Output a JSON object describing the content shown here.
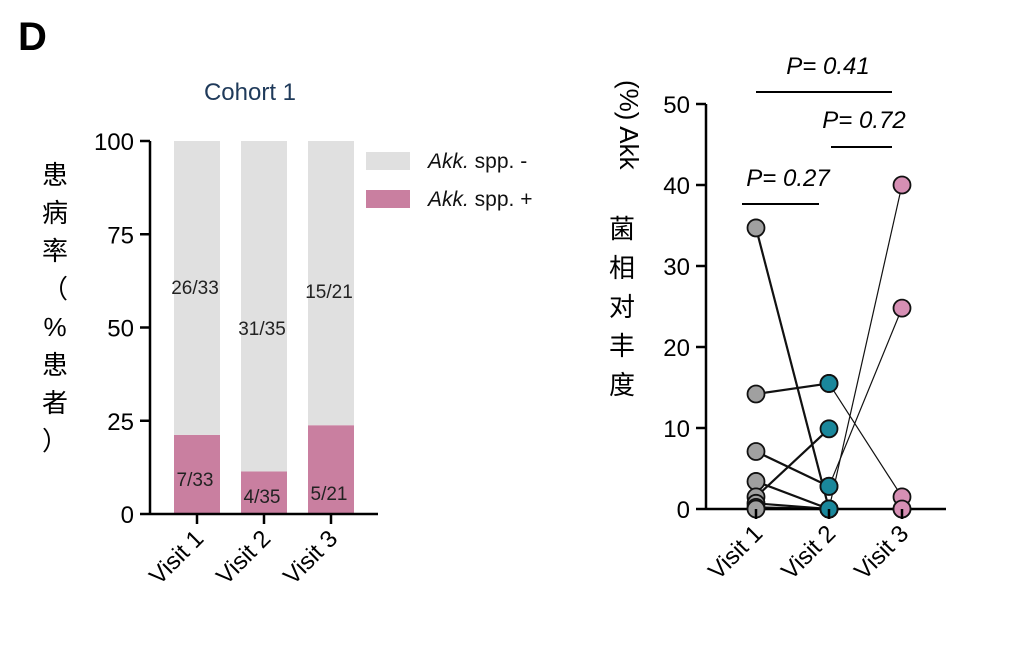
{
  "panel_label": "D",
  "chart_data": [
    {
      "type": "bar",
      "stacked": true,
      "title": "Cohort 1",
      "categories": [
        "Visit 1",
        "Visit 2",
        "Visit 3"
      ],
      "ylabel_chars": [
        "患",
        "病",
        "率",
        "（",
        "%",
        "患",
        "者",
        "）"
      ],
      "ylim": [
        0,
        100
      ],
      "yticks": [
        "0",
        "25",
        "50",
        "75",
        "100"
      ],
      "series": [
        {
          "name": "Akk. spp. +",
          "values": [
            21.2,
            11.4,
            23.8
          ],
          "labels": [
            "7/33",
            "4/35",
            "5/21"
          ],
          "color": "#c97fa0"
        },
        {
          "name": "Akk. spp. -",
          "values": [
            78.8,
            88.6,
            76.2
          ],
          "labels": [
            "26/33",
            "31/35",
            "15/21"
          ],
          "color": "#e0e0e0"
        }
      ],
      "legend": {
        "placement": "right",
        "entries": [
          {
            "italic": "Akk.",
            "rest": " spp. -",
            "color": "#e0e0e0"
          },
          {
            "italic": "Akk.",
            "rest": " spp. +",
            "color": "#c97fa0"
          }
        ]
      }
    },
    {
      "type": "scatter",
      "paired": true,
      "categories": [
        "Visit 1",
        "Visit 2",
        "Visit 3"
      ],
      "ylabel_head": "(%) Akk",
      "ylabel_chars": [
        "菌",
        "相",
        "对",
        "丰",
        "度"
      ],
      "ylim": [
        0,
        50
      ],
      "yticks": [
        "0",
        "10",
        "20",
        "30",
        "40",
        "50"
      ],
      "point_colors": [
        "#a0a0a0",
        "#1a879b",
        "#d68fb4"
      ],
      "subjects": [
        {
          "v1": 34.7,
          "v2": 0,
          "v3": null
        },
        {
          "v1": 14.2,
          "v2": 15.5,
          "v3": null
        },
        {
          "v1": 7.1,
          "v2": 2.8,
          "v3": null
        },
        {
          "v1": 3.4,
          "v2": 0,
          "v3": null
        },
        {
          "v1": 1.5,
          "v2": 9.9,
          "v3": null
        },
        {
          "v1": 0.7,
          "v2": 0,
          "v3": null
        },
        {
          "v1": 0.2,
          "v2": 0,
          "v3": null
        },
        {
          "v1": 0,
          "v2": 0,
          "v3": 0
        },
        {
          "v1": null,
          "v2": 15.5,
          "v3": 1.5
        },
        {
          "v1": null,
          "v2": 0,
          "v3": 40
        },
        {
          "v1": null,
          "v2": 2.8,
          "v3": 24.8
        },
        {
          "v1": null,
          "v2": 0,
          "v3": 0
        }
      ],
      "annotations": [
        {
          "text": "P= 0.27",
          "from": "Visit 1",
          "to": "Visit 2"
        },
        {
          "text": "P= 0.41",
          "from": "Visit 1",
          "to": "Visit 3"
        },
        {
          "text": "P= 0.72",
          "from": "Visit 2",
          "to": "Visit 3"
        }
      ]
    }
  ]
}
